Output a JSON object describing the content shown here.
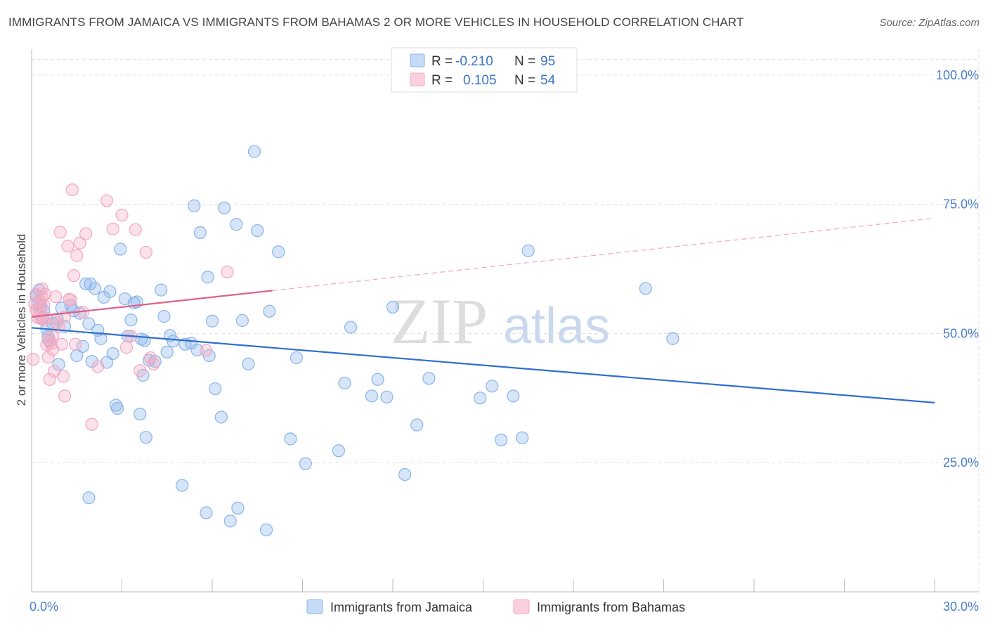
{
  "title": "IMMIGRANTS FROM JAMAICA VS IMMIGRANTS FROM BAHAMAS 2 OR MORE VEHICLES IN HOUSEHOLD CORRELATION CHART",
  "source": "Source: ZipAtlas.com",
  "watermark": {
    "zip": "ZIP",
    "atlas": "atlas"
  },
  "legend": {
    "r_label": "R =",
    "n_label": "N =",
    "rows": [
      {
        "r": "-0.210",
        "n": "95",
        "color": "#8ab4ea"
      },
      {
        "r": "0.105",
        "n": "54",
        "color": "#f3a8c1"
      }
    ]
  },
  "bottom_legend": [
    "Immigrants from Jamaica",
    "Immigrants from Bahamas"
  ],
  "chart_data": {
    "type": "scatter",
    "title": "IMMIGRANTS FROM JAMAICA VS IMMIGRANTS FROM BAHAMAS 2 OR MORE VEHICLES IN HOUSEHOLD CORRELATION CHART",
    "xlabel": "",
    "ylabel": "2 or more Vehicles in Household",
    "xlim": [
      0,
      30
    ],
    "ylim": [
      0,
      105
    ],
    "x_tick_labels": [
      "0.0%",
      "30.0%"
    ],
    "y_ticks": [
      25,
      50,
      75,
      100
    ],
    "y_tick_labels": [
      "25.0%",
      "50.0%",
      "75.0%",
      "100.0%"
    ],
    "grid": true,
    "series": [
      {
        "name": "Immigrants from Jamaica",
        "color": "#8ab4ea",
        "trend_color": "#2f6fcd",
        "trend": {
          "x0": 0,
          "y0": 51.1,
          "x1": 30,
          "y1": 36.6
        },
        "points": [
          [
            0.15,
            57.2
          ],
          [
            0.25,
            58.4
          ],
          [
            0.3,
            55.3
          ],
          [
            0.4,
            54.5
          ],
          [
            0.5,
            50.9
          ],
          [
            0.55,
            49.4
          ],
          [
            0.6,
            48.5
          ],
          [
            0.7,
            51.9
          ],
          [
            0.85,
            52.8
          ],
          [
            0.9,
            44.0
          ],
          [
            1.0,
            54.9
          ],
          [
            1.1,
            51.4
          ],
          [
            1.3,
            55.4
          ],
          [
            1.4,
            54.4
          ],
          [
            1.5,
            45.7
          ],
          [
            1.6,
            53.9
          ],
          [
            1.7,
            47.5
          ],
          [
            1.8,
            59.6
          ],
          [
            1.9,
            51.9
          ],
          [
            2.0,
            44.6
          ],
          [
            2.1,
            58.7
          ],
          [
            2.2,
            50.6
          ],
          [
            2.3,
            49.0
          ],
          [
            2.4,
            57.0
          ],
          [
            2.5,
            44.4
          ],
          [
            2.6,
            58.1
          ],
          [
            2.7,
            46.1
          ],
          [
            2.8,
            36.1
          ],
          [
            2.85,
            35.5
          ],
          [
            2.95,
            66.3
          ],
          [
            3.1,
            56.7
          ],
          [
            3.2,
            49.5
          ],
          [
            3.3,
            52.6
          ],
          [
            3.4,
            55.9
          ],
          [
            3.5,
            56.1
          ],
          [
            3.6,
            34.4
          ],
          [
            3.7,
            41.9
          ],
          [
            3.75,
            48.6
          ],
          [
            3.8,
            29.9
          ],
          [
            3.9,
            44.8
          ],
          [
            4.1,
            44.6
          ],
          [
            4.3,
            58.4
          ],
          [
            4.4,
            53.3
          ],
          [
            4.5,
            46.4
          ],
          [
            4.6,
            49.6
          ],
          [
            4.7,
            48.5
          ],
          [
            5.0,
            20.6
          ],
          [
            5.1,
            47.9
          ],
          [
            5.3,
            48.1
          ],
          [
            5.4,
            74.7
          ],
          [
            5.5,
            46.8
          ],
          [
            5.6,
            69.5
          ],
          [
            5.8,
            15.3
          ],
          [
            5.85,
            60.9
          ],
          [
            5.9,
            45.7
          ],
          [
            6.0,
            52.4
          ],
          [
            6.1,
            39.3
          ],
          [
            6.3,
            33.8
          ],
          [
            6.4,
            74.3
          ],
          [
            6.6,
            13.7
          ],
          [
            6.8,
            71.1
          ],
          [
            6.85,
            16.2
          ],
          [
            7.0,
            52.5
          ],
          [
            7.2,
            44.1
          ],
          [
            7.4,
            85.2
          ],
          [
            7.5,
            69.9
          ],
          [
            7.8,
            12.0
          ],
          [
            7.9,
            54.3
          ],
          [
            8.2,
            65.8
          ],
          [
            8.6,
            29.6
          ],
          [
            8.8,
            45.3
          ],
          [
            9.1,
            24.8
          ],
          [
            10.2,
            27.3
          ],
          [
            10.4,
            40.4
          ],
          [
            10.6,
            51.2
          ],
          [
            11.3,
            37.9
          ],
          [
            11.5,
            41.1
          ],
          [
            11.8,
            37.7
          ],
          [
            12.0,
            55.1
          ],
          [
            12.4,
            22.7
          ],
          [
            12.8,
            32.3
          ],
          [
            13.2,
            41.3
          ],
          [
            14.9,
            37.5
          ],
          [
            15.3,
            39.8
          ],
          [
            15.6,
            29.4
          ],
          [
            16.0,
            37.9
          ],
          [
            16.3,
            29.8
          ],
          [
            16.5,
            66.0
          ],
          [
            20.4,
            58.7
          ],
          [
            21.3,
            49.0
          ],
          [
            0.2,
            56.0
          ],
          [
            0.35,
            53.1
          ],
          [
            1.95,
            59.6
          ],
          [
            1.9,
            18.2
          ],
          [
            3.65,
            48.9
          ]
        ]
      },
      {
        "name": "Immigrants from Bahamas",
        "color": "#f3a8c1",
        "trend_color": "#e0608e",
        "trend": {
          "x0": 0,
          "y0": 53.2,
          "x1": 30,
          "y1": 72.3
        },
        "trend_solid_until": 8,
        "points": [
          [
            0.05,
            45.0
          ],
          [
            0.1,
            55.7
          ],
          [
            0.15,
            57.6
          ],
          [
            0.2,
            53.1
          ],
          [
            0.25,
            54.6
          ],
          [
            0.3,
            56.1
          ],
          [
            0.35,
            58.6
          ],
          [
            0.4,
            52.6
          ],
          [
            0.45,
            57.6
          ],
          [
            0.5,
            47.8
          ],
          [
            0.55,
            45.4
          ],
          [
            0.6,
            41.1
          ],
          [
            0.65,
            48.0
          ],
          [
            0.7,
            46.9
          ],
          [
            0.75,
            42.7
          ],
          [
            0.8,
            57.1
          ],
          [
            0.85,
            52.1
          ],
          [
            0.9,
            51.3
          ],
          [
            0.95,
            69.6
          ],
          [
            1.0,
            47.9
          ],
          [
            1.05,
            41.7
          ],
          [
            1.1,
            37.9
          ],
          [
            1.2,
            66.9
          ],
          [
            1.25,
            56.6
          ],
          [
            1.3,
            56.5
          ],
          [
            1.35,
            77.8
          ],
          [
            1.4,
            61.2
          ],
          [
            1.45,
            47.9
          ],
          [
            1.5,
            65.1
          ],
          [
            1.6,
            67.5
          ],
          [
            1.7,
            54.1
          ],
          [
            1.8,
            69.3
          ],
          [
            2.0,
            32.4
          ],
          [
            2.2,
            43.6
          ],
          [
            2.5,
            75.7
          ],
          [
            2.7,
            70.2
          ],
          [
            3.0,
            72.9
          ],
          [
            3.15,
            47.3
          ],
          [
            3.3,
            49.5
          ],
          [
            3.45,
            70.1
          ],
          [
            3.6,
            42.8
          ],
          [
            3.8,
            65.7
          ],
          [
            3.95,
            45.3
          ],
          [
            4.05,
            44.1
          ],
          [
            5.8,
            46.7
          ],
          [
            6.5,
            61.9
          ],
          [
            0.15,
            54.5
          ],
          [
            0.3,
            52.9
          ],
          [
            0.4,
            55.5
          ],
          [
            0.5,
            53.0
          ],
          [
            0.7,
            49.6
          ],
          [
            1.1,
            53.2
          ],
          [
            0.55,
            48.8
          ],
          [
            0.35,
            57.0
          ]
        ]
      }
    ]
  }
}
